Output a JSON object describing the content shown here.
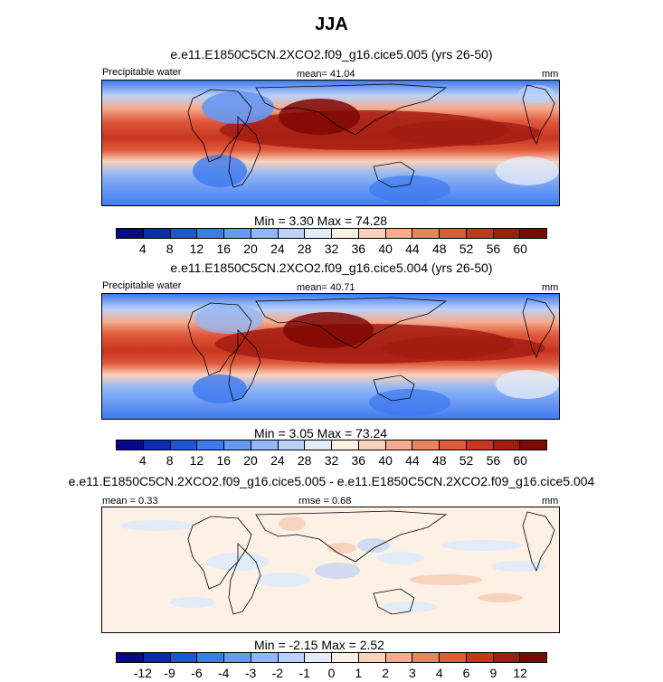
{
  "figure": {
    "title": "JJA"
  },
  "panels": [
    {
      "title": "e.e11.E1850C5CN.2XCO2.f09_g16.cice5.005 (yrs 26-50)",
      "left_label": "Precipitable water",
      "center_label": "mean=  41.04",
      "right_label": "mm",
      "minmax": "Min =   3.30 Max =  74.28"
    },
    {
      "title": "e.e11.E1850C5CN.2XCO2.f09_g16.cice5.004 (yrs 26-50)",
      "left_label": "Precipitable water",
      "center_label": "mean=  40.71",
      "right_label": "mm",
      "minmax": "Min =   3.05 Max =  73.24"
    },
    {
      "title": "e.e11.E1850C5CN.2XCO2.f09_g16.cice5.005 - e.e11.E1850C5CN.2XCO2.f09_g16.cice5.004",
      "left_label": "mean =   0.33",
      "center_label": "rmse =   0.68",
      "right_label": "mm",
      "minmax": "Min =  -2.15 Max =   2.52"
    }
  ],
  "colorbars": {
    "absolute": {
      "ticks": [
        "4",
        "8",
        "12",
        "16",
        "20",
        "24",
        "28",
        "32",
        "36",
        "40",
        "44",
        "48",
        "52",
        "56",
        "60"
      ],
      "colors": [
        "#08088c",
        "#0d2bb3",
        "#1f55d9",
        "#3d79ef",
        "#6798f3",
        "#93b7f5",
        "#bcd1f7",
        "#e2ebf8",
        "#fdf0e5",
        "#f9d2bd",
        "#f4ac8e",
        "#ec8262",
        "#e05a3c",
        "#c83520",
        "#a31c10",
        "#7f0704"
      ]
    },
    "difference": {
      "ticks": [
        "-12",
        "-9",
        "-6",
        "-4",
        "-3",
        "-2",
        "-1",
        "0",
        "1",
        "2",
        "3",
        "4",
        "6",
        "9",
        "12"
      ],
      "colors": [
        "#08088c",
        "#0d2bb3",
        "#1f55d9",
        "#3d79ef",
        "#6798f3",
        "#93b7f5",
        "#bcd1f7",
        "#e2ebf8",
        "#fdf0e5",
        "#f9d2bd",
        "#f4ac8e",
        "#ec8262",
        "#e05a3c",
        "#c83520",
        "#a31c10",
        "#7f0704"
      ]
    }
  },
  "chart_data": [
    {
      "type": "heatmap",
      "title": "e.e11.E1850C5CN.2XCO2.f09_g16.cice5.005 (yrs 26-50)",
      "variable": "Precipitable water",
      "units": "mm",
      "season": "JJA",
      "mean": 41.04,
      "min": 3.3,
      "max": 74.28,
      "levels": [
        4,
        8,
        12,
        16,
        20,
        24,
        28,
        32,
        36,
        40,
        44,
        48,
        52,
        56,
        60
      ]
    },
    {
      "type": "heatmap",
      "title": "e.e11.E1850C5CN.2XCO2.f09_g16.cice5.004 (yrs 26-50)",
      "variable": "Precipitable water",
      "units": "mm",
      "season": "JJA",
      "mean": 40.71,
      "min": 3.05,
      "max": 73.24,
      "levels": [
        4,
        8,
        12,
        16,
        20,
        24,
        28,
        32,
        36,
        40,
        44,
        48,
        52,
        56,
        60
      ]
    },
    {
      "type": "heatmap",
      "title": "e.e11.E1850C5CN.2XCO2.f09_g16.cice5.005 - e.e11.E1850C5CN.2XCO2.f09_g16.cice5.004",
      "units": "mm",
      "season": "JJA",
      "mean": 0.33,
      "rmse": 0.68,
      "min": -2.15,
      "max": 2.52,
      "levels": [
        -12,
        -9,
        -6,
        -4,
        -3,
        -2,
        -1,
        0,
        1,
        2,
        3,
        4,
        6,
        9,
        12
      ]
    }
  ]
}
